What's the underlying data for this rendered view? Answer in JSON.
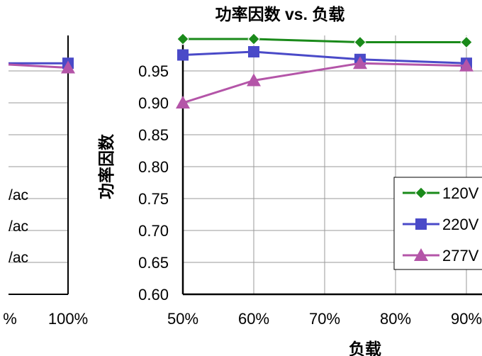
{
  "chart_data": {
    "type": "line",
    "title": "功率因数 vs. 负载",
    "xlabel": "负载",
    "ylabel": "功率因数",
    "xlim": [
      50,
      90
    ],
    "ylim": [
      0.6,
      1.0
    ],
    "x_ticks": [
      "50%",
      "60%",
      "70%",
      "80%",
      "90%"
    ],
    "y_ticks": [
      "0.60",
      "0.65",
      "0.70",
      "0.75",
      "0.80",
      "0.85",
      "0.90",
      "0.95"
    ],
    "grid": true,
    "legend_position": "right",
    "series": [
      {
        "name": "120V",
        "color": "#1a8a1a",
        "marker": "diamond",
        "x": [
          50,
          60,
          75,
          90
        ],
        "y": [
          1.0,
          1.0,
          0.995,
          0.995
        ]
      },
      {
        "name": "220V",
        "color": "#4a4ac8",
        "marker": "square",
        "x": [
          50,
          60,
          75,
          90
        ],
        "y": [
          0.975,
          0.98,
          0.968,
          0.962
        ]
      },
      {
        "name": "277V",
        "color": "#b455a8",
        "marker": "triangle",
        "x": [
          50,
          60,
          75,
          90
        ],
        "y": [
          0.9,
          0.935,
          0.962,
          0.958
        ]
      }
    ]
  },
  "left_panel": {
    "x_ticks": [
      "%",
      "100%"
    ],
    "legend_fragments": [
      "/ac",
      "/ac",
      "/ac"
    ],
    "series_colors": [
      "#4a4ac8",
      "#b455a8"
    ]
  }
}
